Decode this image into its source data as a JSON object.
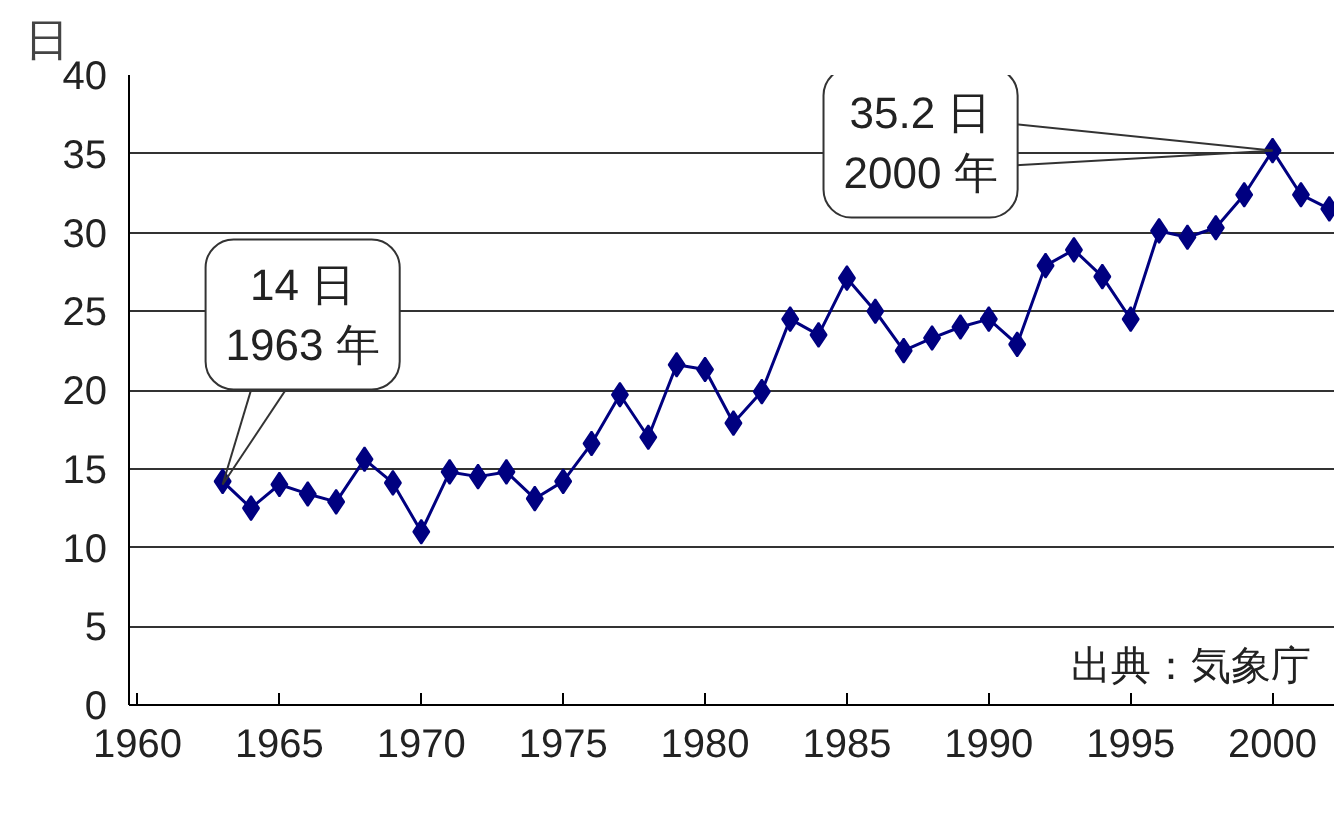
{
  "chart_data": {
    "type": "line",
    "ylabel": "日",
    "x": [
      1963,
      1964,
      1965,
      1966,
      1967,
      1968,
      1969,
      1970,
      1971,
      1972,
      1973,
      1974,
      1975,
      1976,
      1977,
      1978,
      1979,
      1980,
      1981,
      1982,
      1983,
      1984,
      1985,
      1986,
      1987,
      1988,
      1989,
      1990,
      1991,
      1992,
      1993,
      1994,
      1995,
      1996,
      1997,
      1998,
      1999,
      2000,
      2001,
      2002
    ],
    "series": [
      {
        "color": "#000080",
        "values": [
          14.2,
          12.5,
          14.0,
          13.4,
          12.9,
          15.6,
          14.1,
          11.0,
          14.8,
          14.5,
          14.8,
          13.1,
          14.2,
          16.6,
          19.7,
          17.0,
          21.6,
          21.3,
          17.9,
          19.9,
          24.5,
          23.5,
          27.1,
          25.0,
          22.5,
          23.3,
          24.0,
          24.5,
          22.9,
          27.9,
          28.9,
          27.2,
          24.5,
          30.1,
          29.7,
          30.3,
          32.4,
          35.2,
          32.4,
          31.5
        ]
      }
    ],
    "xlim": [
      1959.7,
      2002.2
    ],
    "xticks": [
      1960,
      1965,
      1970,
      1975,
      1980,
      1985,
      1990,
      1995,
      2000
    ],
    "ylim": [
      0,
      40
    ],
    "yticks": [
      0,
      5,
      10,
      15,
      20,
      25,
      30,
      35,
      40
    ],
    "grid": "y",
    "marker": "diamond",
    "line_style": "solid",
    "annotations": [
      {
        "text": "14 日\n1963 年",
        "x": 1963,
        "y": 14
      },
      {
        "text": "35.2 日\n2000 年",
        "x": 2000,
        "y": 35.2
      },
      "出典：気象庁"
    ]
  }
}
